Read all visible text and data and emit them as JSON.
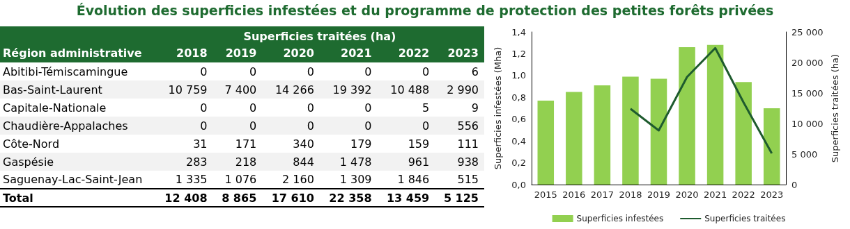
{
  "chart_data": [
    {
      "type": "heatmap",
      "title": "Évolution des superficies infestées et du programme de protection des petites forêts privées",
      "xlabel": "Superficies traitées (ha)",
      "ylabel": "Région administrative",
      "categories": [
        "2018",
        "2019",
        "2020",
        "2021",
        "2022",
        "2023"
      ],
      "y_categories": [
        "Abitibi-Témiscamingue",
        "Bas-Saint-Laurent",
        "Capitale-Nationale",
        "Chaudière-Appalaches",
        "Côte-Nord",
        "Gaspésie",
        "Saguenay-Lac-Saint-Jean",
        "Total"
      ],
      "cells": [
        [
          0,
          0,
          0,
          0,
          0,
          6
        ],
        [
          10759,
          7400,
          14266,
          19392,
          10488,
          2990
        ],
        [
          0,
          0,
          0,
          0,
          5,
          9
        ],
        [
          0,
          0,
          0,
          0,
          0,
          556
        ],
        [
          31,
          171,
          340,
          179,
          159,
          111
        ],
        [
          283,
          218,
          844,
          1478,
          961,
          938
        ],
        [
          1335,
          1076,
          2160,
          1309,
          1846,
          515
        ],
        [
          12408,
          8865,
          17610,
          22358,
          13459,
          5125
        ]
      ],
      "cell_labels": [
        [
          "0",
          "0",
          "0",
          "0",
          "0",
          "6"
        ],
        [
          "10 759",
          "7 400",
          "14 266",
          "19 392",
          "10 488",
          "2 990"
        ],
        [
          "0",
          "0",
          "0",
          "0",
          "5",
          "9"
        ],
        [
          "0",
          "0",
          "0",
          "0",
          "0",
          "556"
        ],
        [
          "31",
          "171",
          "340",
          "179",
          "159",
          "111"
        ],
        [
          "283",
          "218",
          "844",
          "1 478",
          "961",
          "938"
        ],
        [
          "1 335",
          "1 076",
          "2 160",
          "1 309",
          "1 846",
          "515"
        ],
        [
          "12 408",
          "8 865",
          "17 610",
          "22 358",
          "13 459",
          "5 125"
        ]
      ]
    },
    {
      "type": "bar",
      "categories": [
        "2015",
        "2016",
        "2017",
        "2018",
        "2019",
        "2020",
        "2021",
        "2022",
        "2023"
      ],
      "ylabel": "Superficies infestées (Mha)",
      "y2label": "Superficies traitées (ha)",
      "ylim": [
        0,
        1.4
      ],
      "yticks": [
        {
          "value": 0,
          "label": "0,0"
        },
        {
          "value": 0.2,
          "label": "0,2"
        },
        {
          "value": 0.4,
          "label": "0,4"
        },
        {
          "value": 0.6,
          "label": "0,6"
        },
        {
          "value": 0.8,
          "label": "0,8"
        },
        {
          "value": 1.0,
          "label": "1,0"
        },
        {
          "value": 1.2,
          "label": "1,2"
        },
        {
          "value": 1.4,
          "label": "1,4"
        }
      ],
      "y2lim": [
        0,
        25000
      ],
      "y2ticks": [
        0,
        {
          "value": 5000,
          "label": "5 000"
        },
        {
          "value": 10000,
          "label": "10 000"
        },
        {
          "value": 15000,
          "label": "15 000"
        },
        {
          "value": 20000,
          "label": "20 000"
        },
        {
          "value": 25000,
          "label": "25 000"
        }
      ],
      "series": [
        {
          "name": "Superficies infestées",
          "type": "bar",
          "color": "#92d050",
          "values": [
            0.77,
            0.85,
            0.91,
            0.99,
            0.97,
            1.26,
            1.28,
            0.94,
            0.7
          ]
        },
        {
          "name": "Superficies traitées",
          "type": "line",
          "axis": "y2",
          "color": "#1e5b2e",
          "marker": "none",
          "values": [
            null,
            null,
            null,
            12408,
            8865,
            17610,
            22358,
            13459,
            5125
          ]
        }
      ],
      "grid": false,
      "legend": "bottom"
    }
  ]
}
